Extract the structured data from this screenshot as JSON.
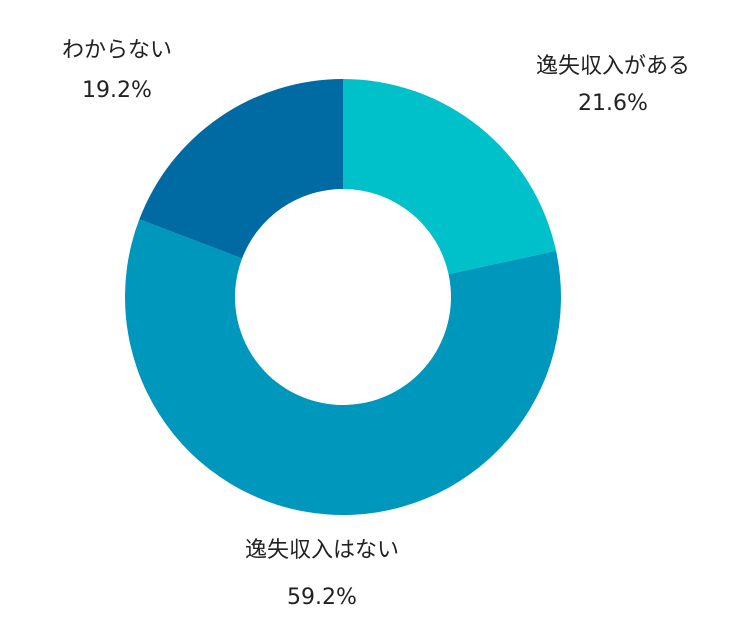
{
  "chart_data": {
    "type": "pie",
    "variant": "donut",
    "title": "",
    "slices": [
      {
        "label": "逸失収入がある",
        "value": 21.6,
        "display": "21.6%",
        "color": "#00C1C9"
      },
      {
        "label": "逸失収入はない",
        "value": 59.2,
        "display": "59.2%",
        "color": "#0097BC"
      },
      {
        "label": "わからない",
        "value": 19.2,
        "display": "19.2%",
        "color": "#006AA3"
      }
    ],
    "start_angle_deg": 0,
    "direction": "clockwise",
    "legend": "none"
  }
}
